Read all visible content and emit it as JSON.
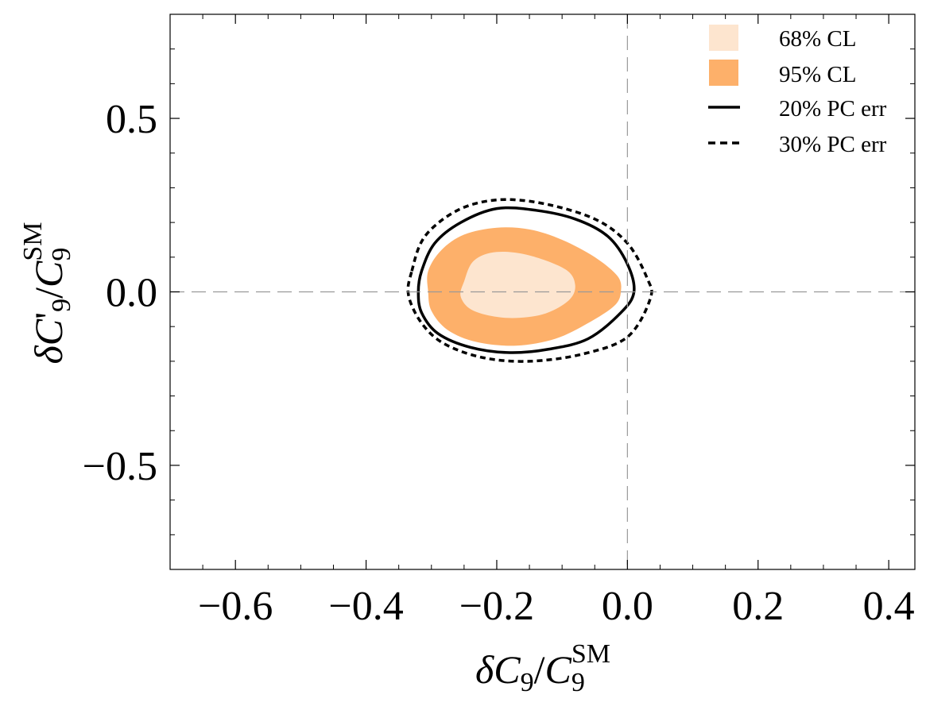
{
  "chart_data": {
    "type": "contour",
    "xlabel": "δC9/C9SM",
    "ylabel": "δC'9/C9SM",
    "xlim": [
      -0.7,
      0.44
    ],
    "ylim": [
      -0.8,
      0.8
    ],
    "x_ticks": [
      {
        "value": -0.6,
        "label": "−0.6"
      },
      {
        "value": -0.4,
        "label": "−0.4"
      },
      {
        "value": -0.2,
        "label": "−0.2"
      },
      {
        "value": 0.0,
        "label": "0.0"
      },
      {
        "value": 0.2,
        "label": "0.2"
      },
      {
        "value": 0.4,
        "label": "0.4"
      }
    ],
    "y_ticks": [
      {
        "value": 0.5,
        "label": "0.5"
      },
      {
        "value": 0.0,
        "label": "0.0"
      },
      {
        "value": -0.5,
        "label": "−0.5"
      }
    ],
    "reference_lines": {
      "x": 0.0,
      "y": 0.0
    },
    "colors": {
      "cl68": "#fde5cf",
      "cl95": "#fdb06a",
      "pc20": "#000000",
      "pc30": "#000000",
      "reference": "#999999"
    },
    "legend": [
      {
        "label": "68% CL",
        "kind": "fill",
        "color": "#fde5cf"
      },
      {
        "label": "95% CL",
        "kind": "fill",
        "color": "#fdb06a"
      },
      {
        "label": "20% PC err",
        "kind": "solid-line",
        "color": "#000000"
      },
      {
        "label": "30% PC err",
        "kind": "dashed-line",
        "color": "#000000"
      }
    ],
    "legend_position": "top-right",
    "regions": {
      "cl95": [
        [
          -0.305,
          0.06
        ],
        [
          -0.285,
          0.12
        ],
        [
          -0.25,
          0.165
        ],
        [
          -0.2,
          0.185
        ],
        [
          -0.15,
          0.18
        ],
        [
          -0.1,
          0.15
        ],
        [
          -0.05,
          0.1
        ],
        [
          -0.015,
          0.045
        ],
        [
          -0.01,
          0.0
        ],
        [
          -0.02,
          -0.04
        ],
        [
          -0.06,
          -0.09
        ],
        [
          -0.11,
          -0.135
        ],
        [
          -0.17,
          -0.155
        ],
        [
          -0.23,
          -0.145
        ],
        [
          -0.275,
          -0.11
        ],
        [
          -0.3,
          -0.055
        ],
        [
          -0.305,
          0.0
        ]
      ],
      "cl68": [
        [
          -0.25,
          0.03
        ],
        [
          -0.235,
          0.09
        ],
        [
          -0.2,
          0.115
        ],
        [
          -0.15,
          0.105
        ],
        [
          -0.095,
          0.065
        ],
        [
          -0.08,
          0.02
        ],
        [
          -0.09,
          -0.025
        ],
        [
          -0.13,
          -0.065
        ],
        [
          -0.185,
          -0.075
        ],
        [
          -0.235,
          -0.055
        ],
        [
          -0.255,
          -0.015
        ]
      ],
      "pc20": [
        [
          -0.315,
          0.06
        ],
        [
          -0.295,
          0.14
        ],
        [
          -0.255,
          0.2
        ],
        [
          -0.2,
          0.24
        ],
        [
          -0.14,
          0.235
        ],
        [
          -0.08,
          0.21
        ],
        [
          -0.03,
          0.16
        ],
        [
          0.0,
          0.08
        ],
        [
          0.01,
          0.0
        ],
        [
          -0.01,
          -0.06
        ],
        [
          -0.06,
          -0.135
        ],
        [
          -0.12,
          -0.165
        ],
        [
          -0.18,
          -0.175
        ],
        [
          -0.24,
          -0.16
        ],
        [
          -0.29,
          -0.12
        ],
        [
          -0.315,
          -0.06
        ],
        [
          -0.32,
          0.0
        ]
      ],
      "pc30": [
        [
          -0.33,
          0.06
        ],
        [
          -0.31,
          0.16
        ],
        [
          -0.26,
          0.235
        ],
        [
          -0.2,
          0.265
        ],
        [
          -0.13,
          0.255
        ],
        [
          -0.05,
          0.21
        ],
        [
          0.0,
          0.14
        ],
        [
          0.03,
          0.04
        ],
        [
          0.035,
          -0.02
        ],
        [
          0.0,
          -0.13
        ],
        [
          -0.07,
          -0.18
        ],
        [
          -0.15,
          -0.2
        ],
        [
          -0.22,
          -0.19
        ],
        [
          -0.28,
          -0.15
        ],
        [
          -0.315,
          -0.09
        ],
        [
          -0.335,
          -0.01
        ]
      ]
    }
  }
}
